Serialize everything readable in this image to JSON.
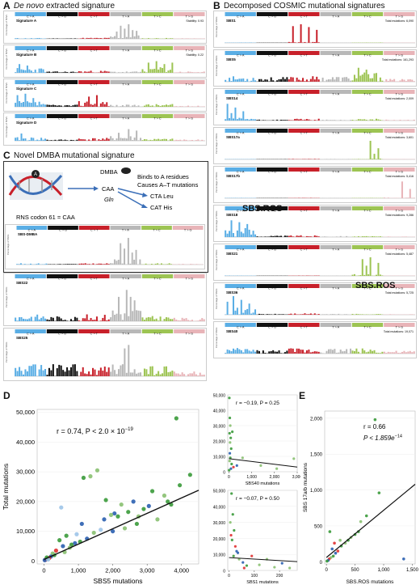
{
  "panels": {
    "A": {
      "letter": "A",
      "title_italic": "De novo",
      "title_rest": " extracted signature"
    },
    "B": {
      "letter": "B",
      "title": "Decomposed COSMIC mutational signatures"
    },
    "C": {
      "letter": "C",
      "title": "Novel DMBA mutational signature"
    },
    "D": {
      "letter": "D"
    },
    "E": {
      "letter": "E"
    }
  },
  "mut_classes": [
    "C > A",
    "C > G",
    "C > T",
    "T > A",
    "T > C",
    "T > G"
  ],
  "class_colors": [
    "#5aaee5",
    "#111111",
    "#c8202a",
    "#b8b8b8",
    "#9dc453",
    "#e8b4b8"
  ],
  "ylabel_small": "Percentage of SNVs",
  "signatures_A": [
    {
      "name": "Signature A",
      "stat": "Stability: 0.93"
    },
    {
      "name": "Signature B",
      "stat": "Stability: 0.22"
    },
    {
      "name": "Signature C",
      "stat": ""
    },
    {
      "name": "Signature D",
      "stat": ""
    }
  ],
  "signatures_B": [
    {
      "name": "SBS1",
      "total": "Total mutations: 6,090"
    },
    {
      "name": "SBS5",
      "total": "Total mutations: 161,293"
    },
    {
      "name": "SBS14",
      "total": "Total mutations: 2,009"
    },
    {
      "name": "SBS17a",
      "total": "Total mutations: 3,601"
    },
    {
      "name": "SBS17b",
      "total": "Total mutations: 5,416"
    },
    {
      "name": "SBS18",
      "total": "Total mutations: 9,286"
    },
    {
      "name": "SBS21",
      "total": "Total mutations: 5,487"
    },
    {
      "name": "SBS36",
      "total": "Total mutations: 5,725"
    },
    {
      "name": "SBS40",
      "total": "Total mutations: 19,071"
    }
  ],
  "sbs_ros_label": "SBS.ROS",
  "dmba": {
    "dmba_label": "DMBA",
    "codon": "CAA",
    "gln": "Gln",
    "binds_line1": "Binds to A residues",
    "binds_line2": "Causes A–T mutations",
    "cta": "CTA Leu",
    "cat": "CAT His",
    "rns": "RNS codon 61 = CAA",
    "sig_name": "SBS-DMBA"
  },
  "signatures_C_below": [
    {
      "name": "SBS22"
    },
    {
      "name": "SBS25"
    }
  ],
  "chart_data": [
    {
      "type": "scatter",
      "id": "D-main",
      "xlabel": "SBS5 mutations",
      "ylabel": "Total mutations",
      "xlim": [
        -200,
        4500
      ],
      "ylim": [
        -1000,
        51000
      ],
      "xticks": [
        "0",
        "1,000",
        "2,000",
        "3,000",
        "4,000"
      ],
      "xtick_vals": [
        0,
        1000,
        2000,
        3000,
        4000
      ],
      "yticks": [
        "0",
        "10,000",
        "20,000",
        "30,000",
        "40,000",
        "50,000"
      ],
      "ytick_vals": [
        0,
        10000,
        20000,
        30000,
        40000,
        50000
      ],
      "annotation": "r = 0.74, P < 2.0 × 10",
      "annotation_exp": "−19",
      "fit": {
        "x": [
          0,
          4500
        ],
        "y": [
          500,
          23800
        ]
      },
      "points": [
        [
          3850,
          48000,
          "#3a9a3a"
        ],
        [
          4250,
          29000,
          "#3a9a3a"
        ],
        [
          3950,
          25500,
          "#3a9a3a"
        ],
        [
          3700,
          19000,
          "#3a9a3a"
        ],
        [
          3500,
          22000,
          "#88c070"
        ],
        [
          3050,
          18500,
          "#2a5fb0"
        ],
        [
          3150,
          23500,
          "#3a9a3a"
        ],
        [
          2900,
          17500,
          "#3a9a3a"
        ],
        [
          2750,
          15000,
          "#88c070"
        ],
        [
          2600,
          20000,
          "#2a5fb0"
        ],
        [
          2450,
          16500,
          "#3a9a3a"
        ],
        [
          2150,
          15000,
          "#3a9a3a"
        ],
        [
          2050,
          16000,
          "#2a5fb0"
        ],
        [
          1950,
          15500,
          "#88c070"
        ],
        [
          2250,
          19000,
          "#88c070"
        ],
        [
          1750,
          14000,
          "#2a5fb0"
        ],
        [
          1550,
          30500,
          "#88c070"
        ],
        [
          1450,
          9500,
          "#88c070"
        ],
        [
          1350,
          28500,
          "#88c070"
        ],
        [
          1150,
          28000,
          "#3a9a3a"
        ],
        [
          1100,
          12500,
          "#2a5fb0"
        ],
        [
          1050,
          6500,
          "#3a9a3a"
        ],
        [
          900,
          6000,
          "#2a5fb0"
        ],
        [
          800,
          5500,
          "#3a9a3a"
        ],
        [
          750,
          4500,
          "#88c070"
        ],
        [
          650,
          8500,
          "#3a9a3a"
        ],
        [
          550,
          5000,
          "#2a5fb0"
        ],
        [
          450,
          7000,
          "#3a9a3a"
        ],
        [
          350,
          3500,
          "#e03030"
        ],
        [
          300,
          2000,
          "#3a9a3a"
        ],
        [
          250,
          2500,
          "#88c070"
        ],
        [
          200,
          1500,
          "#2a5fb0"
        ],
        [
          150,
          1000,
          "#e03030"
        ],
        [
          100,
          800,
          "#3a9a3a"
        ],
        [
          60,
          600,
          "#88c070"
        ],
        [
          40,
          400,
          "#e03030"
        ],
        [
          20,
          300,
          "#2a5fb0"
        ],
        [
          80,
          1200,
          "#3a9a3a"
        ],
        [
          120,
          500,
          "#9dc4e8"
        ],
        [
          500,
          18000,
          "#9dc4e8"
        ],
        [
          950,
          9000,
          "#9dc4e8"
        ],
        [
          1650,
          10500,
          "#9dc4e8"
        ],
        [
          2000,
          10000,
          "#2a5fb0"
        ],
        [
          2350,
          11000,
          "#88c070"
        ],
        [
          2700,
          12500,
          "#3a9a3a"
        ],
        [
          3300,
          14000,
          "#88c070"
        ],
        [
          1250,
          7500,
          "#2a5fb0"
        ],
        [
          600,
          3000,
          "#88c070"
        ],
        [
          3600,
          20000,
          "#3a9a3a"
        ],
        [
          1800,
          20500,
          "#3a9a3a"
        ]
      ]
    },
    {
      "type": "scatter",
      "id": "D-top",
      "xlabel": "SBS40 mutations",
      "xlim": [
        -50,
        3000
      ],
      "ylim": [
        0,
        50000
      ],
      "xticks": [
        "0",
        "1,000",
        "2,000",
        "3,000"
      ],
      "xtick_vals": [
        0,
        1000,
        2000,
        3000
      ],
      "yticks": [
        "0",
        "10,000",
        "20,000",
        "30,000",
        "40,000",
        "50,000"
      ],
      "ytick_vals": [
        0,
        10000,
        20000,
        30000,
        40000,
        50000
      ],
      "annotation": "r = −0.19, P = 0.25",
      "fit": {
        "x": [
          0,
          3000
        ],
        "y": [
          8500,
          3000
        ]
      },
      "points": [
        [
          20,
          48000,
          "#3a9a3a"
        ],
        [
          40,
          35000,
          "#3a9a3a"
        ],
        [
          60,
          30000,
          "#88c070"
        ],
        [
          30,
          25000,
          "#3a9a3a"
        ],
        [
          80,
          22000,
          "#3a9a3a"
        ],
        [
          50,
          19000,
          "#88c070"
        ],
        [
          100,
          15000,
          "#3a9a3a"
        ],
        [
          40,
          12000,
          "#2a5fb0"
        ],
        [
          60,
          9000,
          "#3a9a3a"
        ],
        [
          30,
          7000,
          "#88c070"
        ],
        [
          120,
          5000,
          "#3a9a3a"
        ],
        [
          200,
          3000,
          "#e03030"
        ],
        [
          90,
          2000,
          "#2a5fb0"
        ],
        [
          10,
          1000,
          "#3a9a3a"
        ],
        [
          600,
          9000,
          "#88c070"
        ],
        [
          1400,
          4000,
          "#88c070"
        ],
        [
          2100,
          2000,
          "#88c070"
        ],
        [
          2850,
          8500,
          "#88c070"
        ],
        [
          350,
          4000,
          "#2a5fb0"
        ],
        [
          150,
          26000,
          "#3a9a3a"
        ]
      ]
    },
    {
      "type": "scatter",
      "id": "D-bottom",
      "xlabel": "SBS1 mutations",
      "xlim": [
        -5,
        270
      ],
      "ylim": [
        0,
        50000
      ],
      "xticks": [
        "0",
        "100",
        "200"
      ],
      "xtick_vals": [
        0,
        100,
        200
      ],
      "yticks": [
        "0",
        "10,000",
        "20,000",
        "30,000",
        "40,000",
        "50,000"
      ],
      "ytick_vals": [
        0,
        10000,
        20000,
        30000,
        40000,
        50000
      ],
      "annotation": "r = −0.07, P = 0.50",
      "fit": {
        "x": [
          0,
          270
        ],
        "y": [
          8000,
          5500
        ]
      },
      "points": [
        [
          10,
          48000,
          "#3a9a3a"
        ],
        [
          15,
          35000,
          "#3a9a3a"
        ],
        [
          5,
          30000,
          "#88c070"
        ],
        [
          20,
          25000,
          "#3a9a3a"
        ],
        [
          8,
          22000,
          "#e03030"
        ],
        [
          12,
          19000,
          "#3a9a3a"
        ],
        [
          25,
          15000,
          "#e03030"
        ],
        [
          30,
          12000,
          "#2a5fb0"
        ],
        [
          18,
          9000,
          "#3a9a3a"
        ],
        [
          40,
          7000,
          "#88c070"
        ],
        [
          55,
          5000,
          "#2a5fb0"
        ],
        [
          70,
          3000,
          "#3a9a3a"
        ],
        [
          90,
          9000,
          "#e03030"
        ],
        [
          120,
          3500,
          "#88c070"
        ],
        [
          150,
          7000,
          "#88c070"
        ],
        [
          180,
          2000,
          "#88c070"
        ],
        [
          210,
          4500,
          "#2a5fb0"
        ],
        [
          240,
          1500,
          "#88c070"
        ],
        [
          35,
          11000,
          "#2a5fb0"
        ],
        [
          60,
          1500,
          "#e03030"
        ]
      ]
    },
    {
      "type": "scatter",
      "id": "E",
      "xlabel": "SBS.ROS mutations",
      "ylabel": "SBS 17a/b mutations",
      "xlim": [
        -30,
        1550
      ],
      "ylim": [
        -30,
        2100
      ],
      "xticks": [
        "0",
        "500",
        "1,000",
        "1,500"
      ],
      "xtick_vals": [
        0,
        500,
        1000,
        1500
      ],
      "yticks": [
        "0",
        "500",
        "1,000",
        "1,500",
        "2,000"
      ],
      "ytick_vals": [
        0,
        500,
        1000,
        1500,
        2000
      ],
      "annotation_r": "r = 0.66",
      "annotation_p": "P < 1.859e",
      "annotation_p_exp": "−14",
      "fit": {
        "x": [
          0,
          1550
        ],
        "y": [
          60,
          1080
        ]
      },
      "points": [
        [
          850,
          1980,
          "#3a9a3a"
        ],
        [
          920,
          960,
          "#3a9a3a"
        ],
        [
          700,
          640,
          "#3a9a3a"
        ],
        [
          600,
          560,
          "#88c070"
        ],
        [
          560,
          420,
          "#3a9a3a"
        ],
        [
          500,
          380,
          "#3a9a3a"
        ],
        [
          430,
          340,
          "#88c070"
        ],
        [
          380,
          300,
          "#3a9a3a"
        ],
        [
          330,
          260,
          "#88c070"
        ],
        [
          260,
          220,
          "#3a9a3a"
        ],
        [
          200,
          150,
          "#e03030"
        ],
        [
          160,
          120,
          "#2a5fb0"
        ],
        [
          120,
          80,
          "#3a9a3a"
        ],
        [
          80,
          60,
          "#88c070"
        ],
        [
          50,
          40,
          "#e03030"
        ],
        [
          30,
          20,
          "#2a5fb0"
        ],
        [
          10,
          10,
          "#3a9a3a"
        ],
        [
          1350,
          40,
          "#2a5fb0"
        ],
        [
          140,
          260,
          "#e03030"
        ],
        [
          240,
          300,
          "#88c070"
        ],
        [
          60,
          420,
          "#3a9a3a"
        ],
        [
          100,
          180,
          "#2a5fb0"
        ]
      ]
    }
  ]
}
